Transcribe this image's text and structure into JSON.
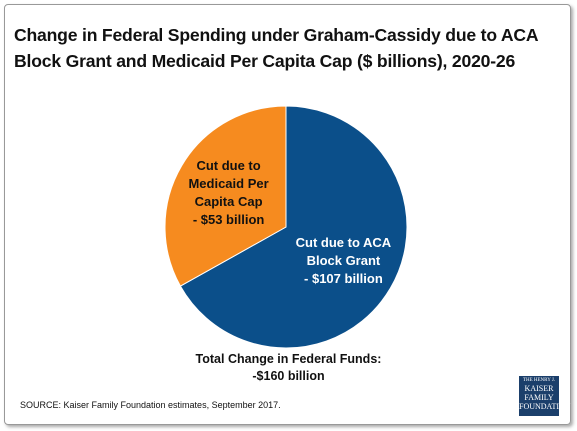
{
  "chart_data": {
    "type": "pie",
    "title": [
      "Change in Federal Spending under Graham-Cassidy due to ACA",
      "Block Grant and Medicaid Per Capita Cap ($ billions), 2020-26"
    ],
    "categories": [
      "Cut due to ACA Block Grant",
      "Cut due to Medicaid Per Capita Cap"
    ],
    "values": [
      107,
      53
    ],
    "value_labels": [
      "- $107 billion",
      "- $53 billion"
    ],
    "colors": [
      "#0b4f8a",
      "#f68b1f"
    ],
    "annotations": [
      "Total Change in Federal Funds:",
      "-$160 billion"
    ],
    "source": "SOURCE: Kaiser Family Foundation estimates, September 2017.",
    "logo": [
      "THE HENRY J.",
      "KAISER",
      "FAMILY",
      "FOUNDATION"
    ]
  }
}
